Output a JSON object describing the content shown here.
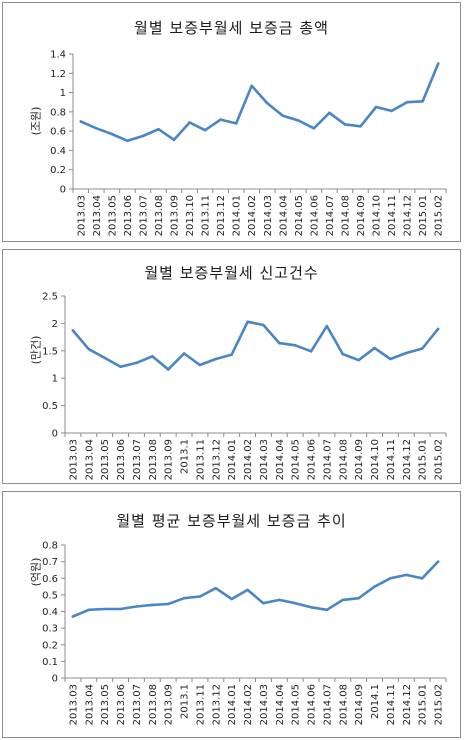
{
  "chart_data": [
    {
      "type": "line",
      "title": "월별 보증부월세 보증금 총액",
      "ylabel": "(조원)",
      "xlabel": "",
      "ylim": [
        0,
        1.4
      ],
      "yticks": [
        "0",
        "0.2",
        "0.4",
        "0.6",
        "0.8",
        "1",
        "1.2",
        "1.4"
      ],
      "grid": false,
      "line_color": "#4a86c5",
      "categories": [
        "2013.03",
        "2013.04",
        "2013.05",
        "2013.06",
        "2013.07",
        "2013.08",
        "2013.09",
        "2013.10",
        "2013.11",
        "2013.12",
        "2014.01",
        "2014.02",
        "2014.03",
        "2014.04",
        "2014.05",
        "2014.06",
        "2014.07",
        "2014.08",
        "2014.09",
        "2014.10",
        "2014.11",
        "2014.12",
        "2015.01",
        "2015.02"
      ],
      "values": [
        0.7,
        0.63,
        0.57,
        0.5,
        0.55,
        0.62,
        0.51,
        0.69,
        0.61,
        0.72,
        0.68,
        1.07,
        0.89,
        0.76,
        0.71,
        0.63,
        0.79,
        0.67,
        0.65,
        0.85,
        0.81,
        0.9,
        0.91,
        1.3
      ]
    },
    {
      "type": "line",
      "title": "월별 보증부월세 신고건수",
      "ylabel": "(만건)",
      "xlabel": "",
      "ylim": [
        0,
        2.5
      ],
      "yticks": [
        "0",
        "0.5",
        "1",
        "1.5",
        "2",
        "2.5"
      ],
      "grid": false,
      "line_color": "#4a86c5",
      "categories": [
        "2013.03",
        "2013.04",
        "2013.05",
        "2013.06",
        "2013.07",
        "2013.08",
        "2013.09",
        "2013.1",
        "2013.11",
        "2013.12",
        "2014.01",
        "2014.02",
        "2014.03",
        "2014.04",
        "2014.05",
        "2014.06",
        "2014.07",
        "2014.08",
        "2014.09",
        "2014.10",
        "2014.11",
        "2014.12",
        "2015.01",
        "2015.02"
      ],
      "values": [
        1.87,
        1.53,
        1.37,
        1.21,
        1.28,
        1.4,
        1.16,
        1.45,
        1.24,
        1.35,
        1.43,
        2.03,
        1.97,
        1.64,
        1.6,
        1.49,
        1.95,
        1.44,
        1.33,
        1.55,
        1.35,
        1.46,
        1.54,
        1.9
      ]
    },
    {
      "type": "line",
      "title": "월별 평균 보증부월세 보증금 추이",
      "ylabel": "(억원)",
      "xlabel": "",
      "ylim": [
        0,
        0.8
      ],
      "yticks": [
        "0",
        "0.1",
        "0.2",
        "0.3",
        "0.4",
        "0.5",
        "0.6",
        "0.7",
        "0.8"
      ],
      "grid": false,
      "line_color": "#4a86c5",
      "categories": [
        "2013.03",
        "2013.04",
        "2013.05",
        "2013.06",
        "2013.07",
        "2013.08",
        "2013.09",
        "2013.1",
        "2013.11",
        "2013.12",
        "2014.01",
        "2014.02",
        "2014.03",
        "2014.04",
        "2014.05",
        "2014.06",
        "2014.07",
        "2014.08",
        "2014.09",
        "2014.1",
        "2014.11",
        "2014.12",
        "2015.01",
        "2015.02"
      ],
      "values": [
        0.37,
        0.41,
        0.415,
        0.415,
        0.43,
        0.44,
        0.445,
        0.48,
        0.49,
        0.54,
        0.475,
        0.53,
        0.45,
        0.47,
        0.45,
        0.425,
        0.41,
        0.47,
        0.48,
        0.55,
        0.6,
        0.62,
        0.6,
        0.7
      ]
    }
  ]
}
